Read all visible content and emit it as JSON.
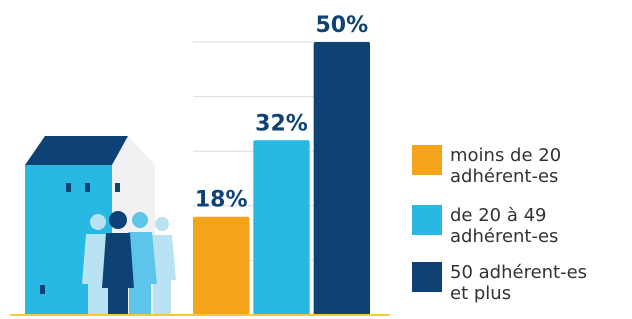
{
  "chart_data": {
    "type": "bar",
    "categories": [
      null
    ],
    "series": [
      {
        "name": "moins de 20 adhérent-es",
        "color": "#f5a31a",
        "values": [
          18
        ],
        "value_labels": [
          "18%"
        ]
      },
      {
        "name": "de 20 à 49 adhérent-es",
        "color": "#27b9e3",
        "values": [
          32
        ],
        "value_labels": [
          "32%"
        ]
      },
      {
        "name": "50 adhérent-es et plus",
        "color": "#0e4275",
        "values": [
          50
        ],
        "value_labels": [
          "50%"
        ]
      }
    ],
    "ylim": [
      0,
      50
    ],
    "yticks": [
      0,
      10,
      20,
      30,
      40,
      50
    ],
    "grid": true
  }
}
